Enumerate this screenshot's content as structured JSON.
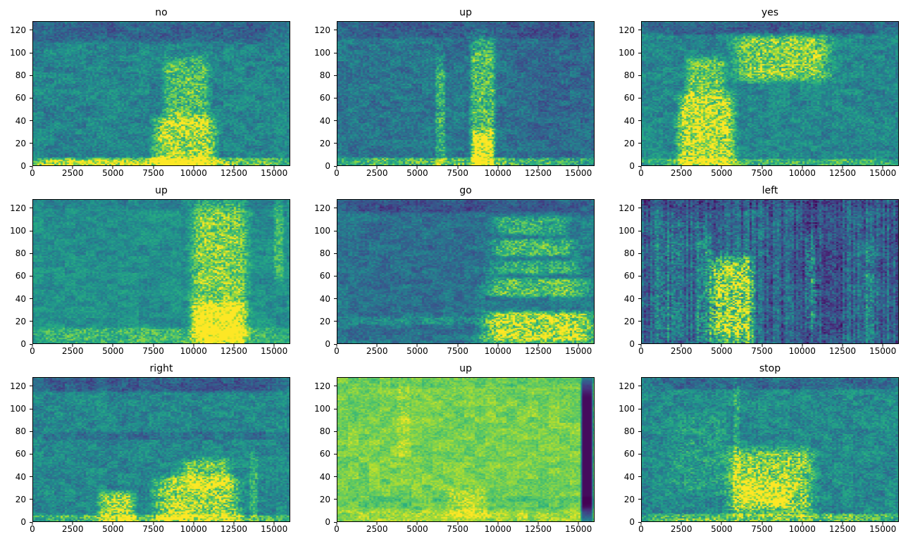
{
  "figure": {
    "background": "#ffffff",
    "colormap": "viridis",
    "colormap_stops": [
      {
        "t": 0.0,
        "color": "#440154"
      },
      {
        "t": 0.13,
        "color": "#482c7a"
      },
      {
        "t": 0.25,
        "color": "#3b518b"
      },
      {
        "t": 0.38,
        "color": "#2c718e"
      },
      {
        "t": 0.5,
        "color": "#21908d"
      },
      {
        "t": 0.63,
        "color": "#27ad81"
      },
      {
        "t": 0.75,
        "color": "#5cc863"
      },
      {
        "t": 0.88,
        "color": "#aadc32"
      },
      {
        "t": 1.0,
        "color": "#fde725"
      }
    ]
  },
  "chart_data": [
    {
      "type": "heatmap",
      "title": "no",
      "xlabel": "",
      "ylabel": "",
      "xlim": [
        0,
        16000
      ],
      "ylim": [
        0,
        128
      ],
      "x_ticks": [
        0,
        2500,
        5000,
        7500,
        10000,
        12500,
        15000
      ],
      "y_ticks": [
        0,
        20,
        40,
        60,
        80,
        100,
        120
      ],
      "base_level": 0.46,
      "noise": 0.1,
      "features": [
        {
          "x": [
            0,
            16000
          ],
          "y": [
            0,
            7
          ],
          "level": 0.3
        },
        {
          "x": [
            0,
            11000
          ],
          "y": [
            0,
            5
          ],
          "level": 0.25
        },
        {
          "x": [
            7600,
            11300
          ],
          "y": [
            0,
            42
          ],
          "level": 0.42
        },
        {
          "x": [
            8200,
            10900
          ],
          "y": [
            40,
            96
          ],
          "level": 0.26
        },
        {
          "x": [
            0,
            16000
          ],
          "y": [
            110,
            128
          ],
          "level": -0.14
        }
      ]
    },
    {
      "type": "heatmap",
      "title": "up",
      "xlabel": "",
      "ylabel": "",
      "xlim": [
        0,
        16000
      ],
      "ylim": [
        0,
        128
      ],
      "x_ticks": [
        0,
        2500,
        5000,
        7500,
        10000,
        12500,
        15000
      ],
      "y_ticks": [
        0,
        20,
        40,
        60,
        80,
        100,
        120
      ],
      "base_level": 0.4,
      "noise": 0.1,
      "features": [
        {
          "x": [
            0,
            16000
          ],
          "y": [
            0,
            7
          ],
          "level": 0.3
        },
        {
          "x": [
            8300,
            9800
          ],
          "y": [
            0,
            112
          ],
          "level": 0.3
        },
        {
          "x": [
            8400,
            9700
          ],
          "y": [
            0,
            30
          ],
          "level": 0.4
        },
        {
          "x": [
            6100,
            6700
          ],
          "y": [
            0,
            95
          ],
          "level": 0.22
        },
        {
          "x": [
            10600,
            16000
          ],
          "y": [
            0,
            128
          ],
          "level": -0.05
        },
        {
          "x": [
            0,
            16000
          ],
          "y": [
            114,
            128
          ],
          "level": -0.1
        }
      ]
    },
    {
      "type": "heatmap",
      "title": "yes",
      "xlabel": "",
      "ylabel": "",
      "xlim": [
        0,
        16000
      ],
      "ylim": [
        0,
        128
      ],
      "x_ticks": [
        0,
        2500,
        5000,
        7500,
        10000,
        12500,
        15000
      ],
      "y_ticks": [
        0,
        20,
        40,
        60,
        80,
        100,
        120
      ],
      "base_level": 0.47,
      "noise": 0.1,
      "features": [
        {
          "x": [
            2300,
            5700
          ],
          "y": [
            0,
            62
          ],
          "level": 0.45
        },
        {
          "x": [
            2800,
            5200
          ],
          "y": [
            60,
            96
          ],
          "level": 0.28
        },
        {
          "x": [
            5900,
            11600
          ],
          "y": [
            76,
            116
          ],
          "level": 0.33
        },
        {
          "x": [
            0,
            16000
          ],
          "y": [
            0,
            6
          ],
          "level": 0.2
        },
        {
          "x": [
            0,
            16000
          ],
          "y": [
            117,
            128
          ],
          "level": -0.16
        }
      ]
    },
    {
      "type": "heatmap",
      "title": "up",
      "xlabel": "",
      "ylabel": "",
      "xlim": [
        0,
        16000
      ],
      "ylim": [
        0,
        128
      ],
      "x_ticks": [
        0,
        2500,
        5000,
        7500,
        10000,
        12500,
        15000
      ],
      "y_ticks": [
        0,
        20,
        40,
        60,
        80,
        100,
        120
      ],
      "base_level": 0.5,
      "noise": 0.08,
      "features": [
        {
          "x": [
            9900,
            13300
          ],
          "y": [
            0,
            128
          ],
          "level": 0.3
        },
        {
          "x": [
            10000,
            13100
          ],
          "y": [
            0,
            36
          ],
          "level": 0.35
        },
        {
          "x": [
            0,
            16000
          ],
          "y": [
            0,
            14
          ],
          "level": 0.18
        },
        {
          "x": [
            15000,
            15600
          ],
          "y": [
            55,
            128
          ],
          "level": 0.15
        },
        {
          "x": [
            0,
            16000
          ],
          "y": [
            120,
            128
          ],
          "level": -0.06
        }
      ]
    },
    {
      "type": "heatmap",
      "title": "go",
      "xlabel": "",
      "ylabel": "",
      "xlim": [
        0,
        16000
      ],
      "ylim": [
        0,
        128
      ],
      "x_ticks": [
        0,
        2500,
        5000,
        7500,
        10000,
        12500,
        15000
      ],
      "y_ticks": [
        0,
        20,
        40,
        60,
        80,
        100,
        120
      ],
      "base_level": 0.42,
      "noise": 0.09,
      "features": [
        {
          "x": [
            0,
            9200
          ],
          "y": [
            0,
            128
          ],
          "level": -0.05
        },
        {
          "x": [
            9200,
            16000
          ],
          "y": [
            4,
            28
          ],
          "level": 0.5
        },
        {
          "x": [
            9400,
            15600
          ],
          "y": [
            42,
            58
          ],
          "level": 0.3
        },
        {
          "x": [
            9700,
            15200
          ],
          "y": [
            62,
            74
          ],
          "level": 0.22
        },
        {
          "x": [
            9700,
            14800
          ],
          "y": [
            78,
            93
          ],
          "level": 0.26
        },
        {
          "x": [
            9900,
            14200
          ],
          "y": [
            97,
            113
          ],
          "level": 0.22
        },
        {
          "x": [
            9000,
            16000
          ],
          "y": [
            0,
            6
          ],
          "level": 0.25
        },
        {
          "x": [
            0,
            9000
          ],
          "y": [
            17,
            24
          ],
          "level": 0.1
        },
        {
          "x": [
            0,
            16000
          ],
          "y": [
            117,
            128
          ],
          "level": -0.13
        }
      ]
    },
    {
      "type": "heatmap",
      "title": "left",
      "xlabel": "",
      "ylabel": "",
      "xlim": [
        0,
        16000
      ],
      "ylim": [
        0,
        128
      ],
      "x_ticks": [
        0,
        2500,
        5000,
        7500,
        10000,
        12500,
        15000
      ],
      "y_ticks": [
        0,
        20,
        40,
        60,
        80,
        100,
        120
      ],
      "base_level": 0.32,
      "noise": 0.13,
      "col_noise": 0.1,
      "features": [
        {
          "x": [
            4300,
            6900
          ],
          "y": [
            0,
            76
          ],
          "level": 0.52
        },
        {
          "x": [
            3400,
            4300
          ],
          "y": [
            0,
            100
          ],
          "level": 0.18
        },
        {
          "x": [
            800,
            2600
          ],
          "y": [
            0,
            112
          ],
          "level": 0.1
        },
        {
          "x": [
            9600,
            12800
          ],
          "y": [
            0,
            128
          ],
          "level": -0.08
        },
        {
          "x": [
            10200,
            10900
          ],
          "y": [
            15,
            95
          ],
          "level": 0.22
        },
        {
          "x": [
            13800,
            14600
          ],
          "y": [
            0,
            90
          ],
          "level": 0.1
        },
        {
          "x": [
            0,
            16000
          ],
          "y": [
            120,
            128
          ],
          "level": -0.07
        }
      ]
    },
    {
      "type": "heatmap",
      "title": "right",
      "xlabel": "",
      "ylabel": "",
      "xlim": [
        0,
        16000
      ],
      "ylim": [
        0,
        128
      ],
      "x_ticks": [
        0,
        2500,
        5000,
        7500,
        10000,
        12500,
        15000
      ],
      "y_ticks": [
        0,
        20,
        40,
        60,
        80,
        100,
        120
      ],
      "base_level": 0.47,
      "noise": 0.1,
      "features": [
        {
          "x": [
            0,
            16000
          ],
          "y": [
            116,
            128
          ],
          "level": -0.17
        },
        {
          "x": [
            0,
            16000
          ],
          "y": [
            73,
            80
          ],
          "level": -0.1
        },
        {
          "x": [
            4100,
            6300
          ],
          "y": [
            0,
            26
          ],
          "level": 0.38
        },
        {
          "x": [
            7700,
            12700
          ],
          "y": [
            0,
            40
          ],
          "level": 0.4
        },
        {
          "x": [
            9300,
            12300
          ],
          "y": [
            30,
            56
          ],
          "level": 0.28
        },
        {
          "x": [
            0,
            16000
          ],
          "y": [
            0,
            6
          ],
          "level": 0.25
        },
        {
          "x": [
            13500,
            14000
          ],
          "y": [
            0,
            60
          ],
          "level": 0.15
        }
      ]
    },
    {
      "type": "heatmap",
      "title": "up",
      "xlabel": "",
      "ylabel": "",
      "xlim": [
        0,
        16000
      ],
      "ylim": [
        0,
        128
      ],
      "x_ticks": [
        0,
        2500,
        5000,
        7500,
        10000,
        12500,
        15000
      ],
      "y_ticks": [
        0,
        20,
        40,
        60,
        80,
        100,
        120
      ],
      "base_level": 0.8,
      "noise": 0.07,
      "features": [
        {
          "x": [
            15200,
            15900
          ],
          "y": [
            0,
            128
          ],
          "set": 0.03
        },
        {
          "x": [
            6800,
            9300
          ],
          "y": [
            4,
            30
          ],
          "level": 0.12
        },
        {
          "x": [
            3700,
            4500
          ],
          "y": [
            55,
            128
          ],
          "level": 0.06
        },
        {
          "x": [
            0,
            16000
          ],
          "y": [
            0,
            10
          ],
          "level": 0.06
        },
        {
          "x": [
            0,
            16000
          ],
          "y": [
            12,
            22
          ],
          "level": -0.06
        },
        {
          "x": [
            0,
            16000
          ],
          "y": [
            120,
            128
          ],
          "level": -0.05
        }
      ]
    },
    {
      "type": "heatmap",
      "title": "stop",
      "xlabel": "",
      "ylabel": "",
      "xlim": [
        0,
        16000
      ],
      "ylim": [
        0,
        128
      ],
      "x_ticks": [
        0,
        2500,
        5000,
        7500,
        10000,
        12500,
        15000
      ],
      "y_ticks": [
        0,
        20,
        40,
        60,
        80,
        100,
        120
      ],
      "base_level": 0.48,
      "noise": 0.11,
      "features": [
        {
          "x": [
            0,
            16000
          ],
          "y": [
            118,
            128
          ],
          "level": -0.14
        },
        {
          "x": [
            5500,
            10600
          ],
          "y": [
            6,
            64
          ],
          "level": 0.34
        },
        {
          "x": [
            6000,
            9200
          ],
          "y": [
            14,
            38
          ],
          "level": 0.22
        },
        {
          "x": [
            0,
            16000
          ],
          "y": [
            0,
            7
          ],
          "level": 0.26
        },
        {
          "x": [
            5700,
            6100
          ],
          "y": [
            0,
            128
          ],
          "level": 0.12
        },
        {
          "x": [
            1800,
            5200
          ],
          "y": [
            25,
            95
          ],
          "level": 0.08
        }
      ]
    }
  ]
}
